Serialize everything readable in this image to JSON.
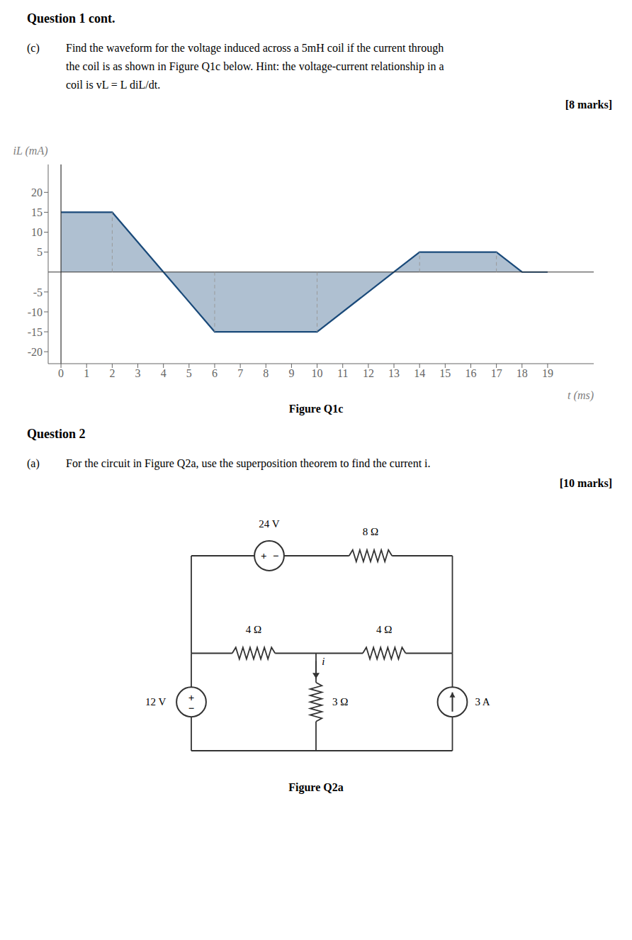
{
  "chart_data": {
    "type": "area",
    "title": "Figure Q1c",
    "x": [
      0,
      2,
      4,
      6,
      10,
      13,
      14,
      17,
      18,
      19
    ],
    "values": [
      15,
      15,
      0,
      -15,
      -15,
      0,
      5,
      5,
      0,
      0
    ],
    "color": "#1a4a7a",
    "xlim": [
      -0.5,
      20.8
    ],
    "ylim": [
      -23,
      27
    ],
    "xticks": [
      0,
      1,
      2,
      3,
      4,
      5,
      6,
      7,
      8,
      9,
      10,
      11,
      12,
      13,
      14,
      15,
      16,
      17,
      18,
      19
    ],
    "yticks": [
      -20,
      -15,
      -10,
      -5,
      5,
      10,
      15,
      20
    ],
    "xlabel": "t (ms)",
    "ylabel": "iL (mA)",
    "grid": false,
    "reference_lines_x": [
      2,
      6,
      10,
      14,
      17
    ],
    "annotations": [
      "Question 1 cont.",
      "(c)",
      "Find the waveform for the voltage induced across a 5mH coil if the current through",
      "the coil is as shown in Figure Q1c below.  Hint: the voltage-current relationship in a",
      "coil is vL = L diL/dt.",
      "[8 marks]",
      "Question 2",
      "(a)",
      "For the circuit in Figure Q2a, use the superposition theorem to find the current i.",
      "[10 marks]",
      "Figure Q2a",
      "24 V",
      "8 Ω",
      "4 Ω",
      "4 Ω",
      "3 Ω",
      "i",
      "12 V",
      "3 A",
      "+",
      "−",
      "+",
      "−"
    ]
  }
}
